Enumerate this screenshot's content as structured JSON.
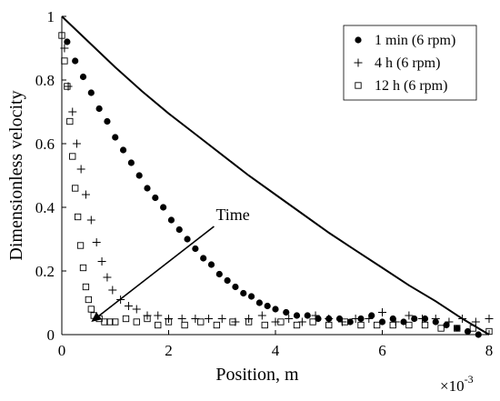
{
  "chart_data": {
    "type": "scatter",
    "title": "",
    "xlabel": "Position, m",
    "ylabel": "Dimensionless velocity",
    "x_multiplier_label": "×10",
    "x_multiplier_exp": "-3",
    "xlim": [
      0,
      8
    ],
    "ylim": [
      0,
      1
    ],
    "x_ticks": [
      "0",
      "2",
      "4",
      "6",
      "8"
    ],
    "y_ticks": [
      "0",
      "0.2",
      "0.4",
      "0.6",
      "0.8",
      "1"
    ],
    "grid": false,
    "legend_position": "top-right",
    "annotation": {
      "text": "Time",
      "arrow_from": [
        2.85,
        0.34
      ],
      "arrow_to": [
        0.55,
        0.04
      ]
    },
    "reference_curve": {
      "name": "",
      "x": [
        0,
        0.5,
        1,
        1.5,
        2,
        2.5,
        3,
        3.5,
        4,
        4.5,
        5,
        5.5,
        6,
        6.5,
        7,
        7.5,
        8
      ],
      "values": [
        1.0,
        0.92,
        0.84,
        0.765,
        0.695,
        0.63,
        0.565,
        0.5,
        0.44,
        0.38,
        0.32,
        0.265,
        0.21,
        0.155,
        0.105,
        0.05,
        0.0
      ]
    },
    "series": [
      {
        "name": "1 min (6 rpm)",
        "marker": "filled-circle",
        "x": [
          0.1,
          0.25,
          0.4,
          0.55,
          0.7,
          0.85,
          1.0,
          1.15,
          1.3,
          1.45,
          1.6,
          1.75,
          1.9,
          2.05,
          2.2,
          2.35,
          2.5,
          2.65,
          2.8,
          2.95,
          3.1,
          3.25,
          3.4,
          3.55,
          3.7,
          3.85,
          4.0,
          4.2,
          4.4,
          4.6,
          4.8,
          5.0,
          5.2,
          5.4,
          5.6,
          5.8,
          6.0,
          6.2,
          6.4,
          6.6,
          6.8,
          7.0,
          7.2,
          7.4,
          7.6,
          7.8
        ],
        "values": [
          0.92,
          0.86,
          0.81,
          0.76,
          0.71,
          0.67,
          0.62,
          0.58,
          0.54,
          0.5,
          0.46,
          0.43,
          0.4,
          0.36,
          0.33,
          0.3,
          0.27,
          0.24,
          0.22,
          0.19,
          0.17,
          0.15,
          0.13,
          0.12,
          0.1,
          0.09,
          0.08,
          0.07,
          0.06,
          0.06,
          0.05,
          0.05,
          0.05,
          0.04,
          0.05,
          0.06,
          0.04,
          0.05,
          0.04,
          0.05,
          0.05,
          0.04,
          0.03,
          0.02,
          0.01,
          0.0
        ]
      },
      {
        "name": "4 h (6 rpm)",
        "marker": "plus",
        "x": [
          0.05,
          0.12,
          0.2,
          0.28,
          0.36,
          0.45,
          0.55,
          0.65,
          0.75,
          0.85,
          0.95,
          1.1,
          1.25,
          1.4,
          1.6,
          1.8,
          2.0,
          2.25,
          2.5,
          2.75,
          3.0,
          3.25,
          3.5,
          3.75,
          4.0,
          4.25,
          4.5,
          4.75,
          5.0,
          5.25,
          5.5,
          5.75,
          6.0,
          6.25,
          6.5,
          6.75,
          7.0,
          7.25,
          7.5,
          7.75,
          8.0
        ],
        "values": [
          0.9,
          0.78,
          0.7,
          0.6,
          0.52,
          0.44,
          0.36,
          0.29,
          0.23,
          0.18,
          0.14,
          0.11,
          0.09,
          0.08,
          0.06,
          0.06,
          0.05,
          0.05,
          0.05,
          0.05,
          0.05,
          0.04,
          0.05,
          0.06,
          0.04,
          0.05,
          0.04,
          0.06,
          0.05,
          0.04,
          0.05,
          0.05,
          0.07,
          0.04,
          0.06,
          0.05,
          0.05,
          0.04,
          0.05,
          0.04,
          0.05
        ]
      },
      {
        "name": "12 h (6 rpm)",
        "marker": "open-square",
        "x": [
          0.0,
          0.05,
          0.1,
          0.15,
          0.2,
          0.25,
          0.3,
          0.35,
          0.4,
          0.45,
          0.5,
          0.55,
          0.6,
          0.7,
          0.8,
          0.9,
          1.0,
          1.2,
          1.4,
          1.6,
          1.8,
          2.0,
          2.3,
          2.6,
          2.9,
          3.2,
          3.5,
          3.8,
          4.1,
          4.4,
          4.7,
          5.0,
          5.3,
          5.6,
          5.9,
          6.2,
          6.5,
          6.8,
          7.1,
          7.4,
          7.7,
          8.0
        ],
        "values": [
          0.94,
          0.86,
          0.78,
          0.67,
          0.56,
          0.46,
          0.37,
          0.28,
          0.21,
          0.15,
          0.11,
          0.08,
          0.06,
          0.05,
          0.04,
          0.04,
          0.04,
          0.05,
          0.04,
          0.05,
          0.03,
          0.04,
          0.03,
          0.04,
          0.03,
          0.04,
          0.04,
          0.03,
          0.04,
          0.03,
          0.04,
          0.03,
          0.04,
          0.03,
          0.03,
          0.03,
          0.03,
          0.03,
          0.02,
          0.02,
          0.02,
          0.01
        ]
      }
    ]
  }
}
